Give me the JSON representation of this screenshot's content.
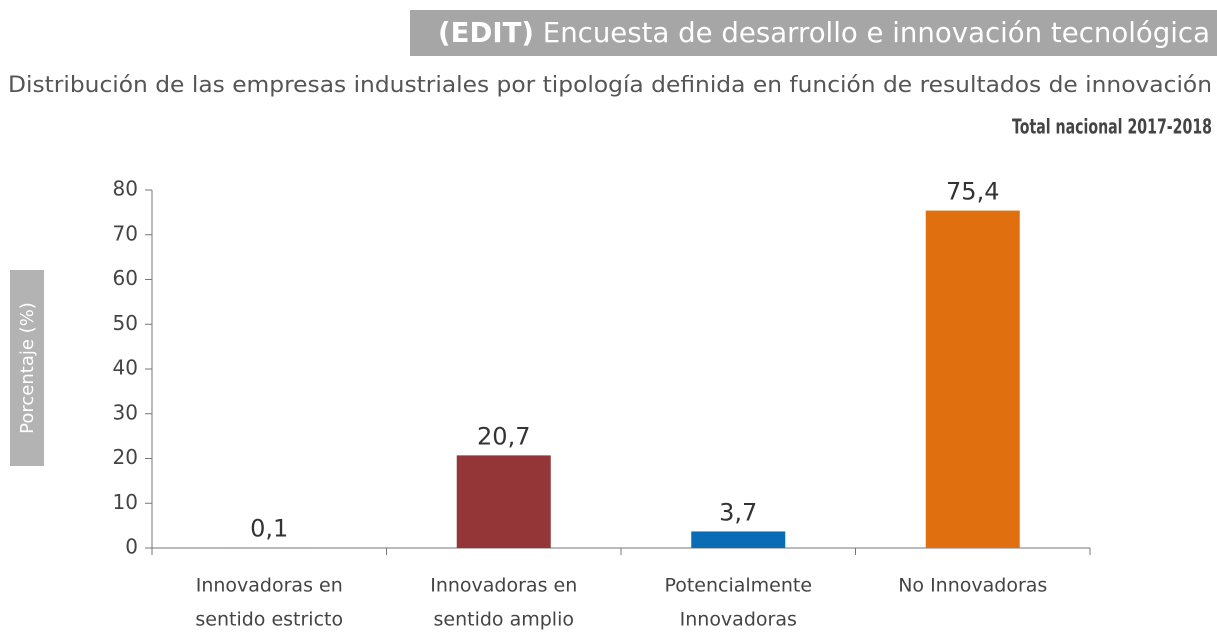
{
  "chart_data": {
    "type": "bar",
    "title_prefix": "(EDIT)",
    "title": " Encuesta de desarrollo e innovación tecnológica",
    "subtitle": "Distribución de las empresas industriales por tipología definida en función de resultados de innovación",
    "note": "Total nacional 2017-2018",
    "y_label": "Porcentaje (%)",
    "categories": [
      [
        "Innovadoras en",
        "sentido estricto"
      ],
      [
        "Innovadoras en",
        "sentido amplio"
      ],
      [
        "Potencialmente",
        "Innovadoras"
      ],
      [
        "No Innovadoras"
      ]
    ],
    "values": [
      0.1,
      20.7,
      3.7,
      75.4
    ],
    "value_labels": [
      "0,1",
      "20,7",
      "3,7",
      "75,4"
    ],
    "colors": [
      "#5a8a3c",
      "#943638",
      "#0a6cb5",
      "#e0700f"
    ],
    "ylim": [
      0,
      80
    ],
    "yticks": [
      0,
      10,
      20,
      30,
      40,
      50,
      60,
      70,
      80
    ]
  }
}
